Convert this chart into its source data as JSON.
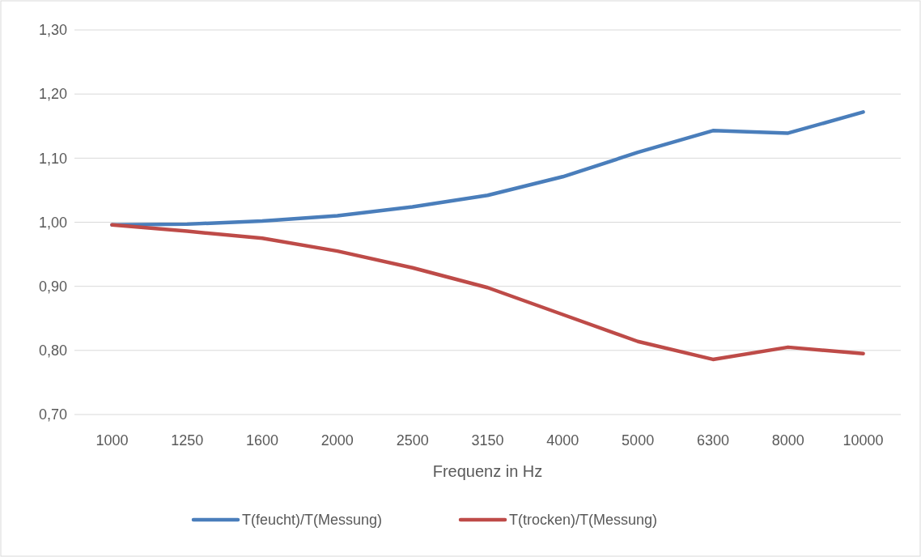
{
  "chart_data": {
    "type": "line",
    "xlabel": "Frequenz in Hz",
    "categories": [
      "1000",
      "1250",
      "1600",
      "2000",
      "2500",
      "3150",
      "4000",
      "5000",
      "6300",
      "8000",
      "10000"
    ],
    "series": [
      {
        "name": "T(feucht)/T(Messung)",
        "color": "#4a7ebb",
        "values": [
          0.996,
          0.997,
          1.002,
          1.01,
          1.024,
          1.042,
          1.071,
          1.109,
          1.143,
          1.139,
          1.172
        ]
      },
      {
        "name": "T(trocken)/T(Messung)",
        "color": "#be4b48",
        "values": [
          0.996,
          0.986,
          0.975,
          0.955,
          0.929,
          0.898,
          0.856,
          0.814,
          0.786,
          0.805,
          0.795
        ]
      }
    ],
    "ylim": [
      0.7,
      1.3
    ],
    "yticks": [
      {
        "value": 0.7,
        "label": "0,70"
      },
      {
        "value": 0.8,
        "label": "0,80"
      },
      {
        "value": 0.9,
        "label": "0,90"
      },
      {
        "value": 1.0,
        "label": "1,00"
      },
      {
        "value": 1.1,
        "label": "1,10"
      },
      {
        "value": 1.2,
        "label": "1,20"
      },
      {
        "value": 1.3,
        "label": "1,30"
      }
    ],
    "grid": "y",
    "legend": "bottom",
    "marker": "none",
    "line_style": "solid"
  }
}
